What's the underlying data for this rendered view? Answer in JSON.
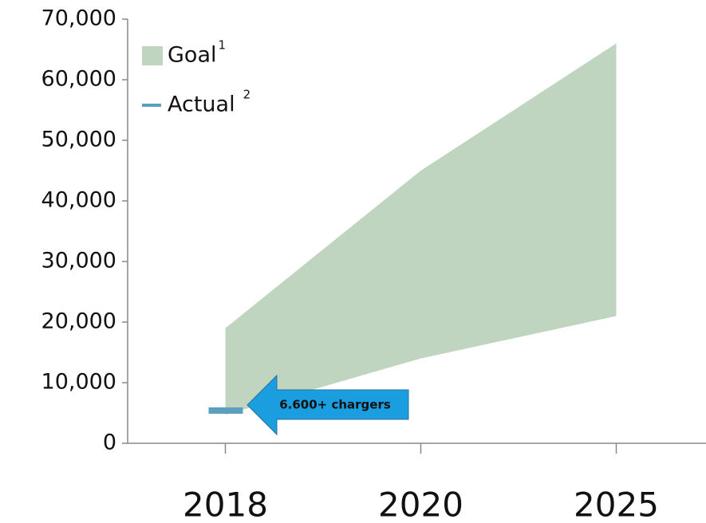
{
  "chart_data": {
    "type": "range_area",
    "categories": [
      "2018",
      "2020",
      "2025"
    ],
    "series": [
      {
        "name": "Goal",
        "footnote": "1",
        "color": "#bfd5c0",
        "low": [
          4700,
          14000,
          21000
        ],
        "high": [
          19000,
          45000,
          66000
        ]
      },
      {
        "name": "Actual",
        "footnote": "2",
        "color": "#5b9fbd",
        "values": [
          5400,
          null,
          null
        ]
      }
    ],
    "ylim": [
      0,
      70000
    ],
    "yticks": [
      0,
      {
        "value": 10000,
        "label": "10,000"
      },
      {
        "value": 20000,
        "label": "20,000"
      },
      {
        "value": 30000,
        "label": "30,000"
      },
      {
        "value": 40000,
        "label": "40,000"
      },
      {
        "value": 50000,
        "label": "50,000"
      },
      {
        "value": 60000,
        "label": "60,000"
      },
      {
        "value": 70000,
        "label": "70,000"
      }
    ],
    "grid": false,
    "legend": "upper left",
    "annotation": {
      "text": "6.600+ chargers",
      "color": "#1a9ee0"
    }
  }
}
